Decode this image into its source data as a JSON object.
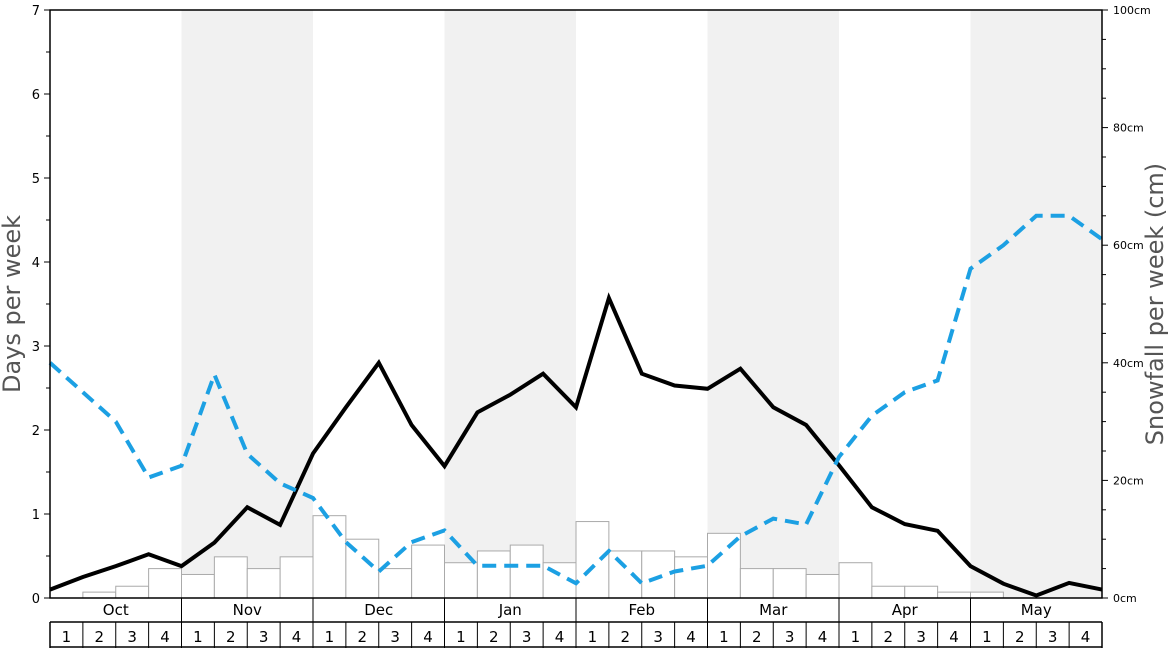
{
  "chart_data": {
    "type": "bar",
    "title": "",
    "y_left": {
      "label": "Days per week",
      "range": [
        0,
        7
      ],
      "ticks": [
        "0",
        "1",
        "2",
        "3",
        "4",
        "5",
        "6",
        "7"
      ]
    },
    "y_right": {
      "label": "Snowfall per week (cm)",
      "range": [
        0,
        100
      ],
      "ticks": [
        "0cm",
        "20cm",
        "40cm",
        "60cm",
        "80cm",
        "100cm"
      ]
    },
    "months": [
      "Oct",
      "Nov",
      "Dec",
      "Jan",
      "Feb",
      "Mar",
      "Apr",
      "May"
    ],
    "week_labels": [
      "1",
      "2",
      "3",
      "4"
    ],
    "shaded_months": [
      "Nov",
      "Jan",
      "Mar",
      "May"
    ],
    "grid": false,
    "series": [
      {
        "kind": "bar",
        "axis": "left",
        "color": "#ffffff",
        "edge_color": "#aaaaaa",
        "values": [
          0,
          0.07,
          0.14,
          0.35,
          0.28,
          0.49,
          0.35,
          0.49,
          0.98,
          0.7,
          0.35,
          0.63,
          0.42,
          0.56,
          0.63,
          0.42,
          0.91,
          0.56,
          0.56,
          0.49,
          0.77,
          0.35,
          0.35,
          0.28,
          0.42,
          0.14,
          0.14,
          0.07,
          0.07,
          0,
          0,
          0
        ]
      },
      {
        "kind": "line",
        "axis": "left",
        "color": "#000000",
        "style": "solid",
        "values": [
          0.1,
          0.25,
          0.38,
          0.52,
          0.38,
          0.66,
          1.08,
          0.87,
          1.72,
          2.27,
          2.8,
          2.06,
          1.57,
          2.21,
          2.42,
          2.67,
          2.27,
          3.57,
          2.67,
          2.53,
          2.49,
          2.73,
          2.27,
          2.06,
          1.58,
          1.08,
          0.88,
          0.8,
          0.38,
          0.17,
          0.03,
          0.18,
          0.1
        ]
      },
      {
        "kind": "line",
        "axis": "right",
        "color": "#1ca0e3",
        "style": "dashed",
        "values": [
          40,
          35,
          30,
          20.5,
          22.5,
          38,
          24.5,
          19.5,
          17,
          9.5,
          4.5,
          9.5,
          11.5,
          5.5,
          5.5,
          5.5,
          2.5,
          8,
          2.5,
          4.5,
          5.5,
          10.5,
          13.5,
          12.5,
          24,
          31,
          35,
          37,
          56,
          60,
          65,
          65,
          61
        ]
      }
    ]
  }
}
